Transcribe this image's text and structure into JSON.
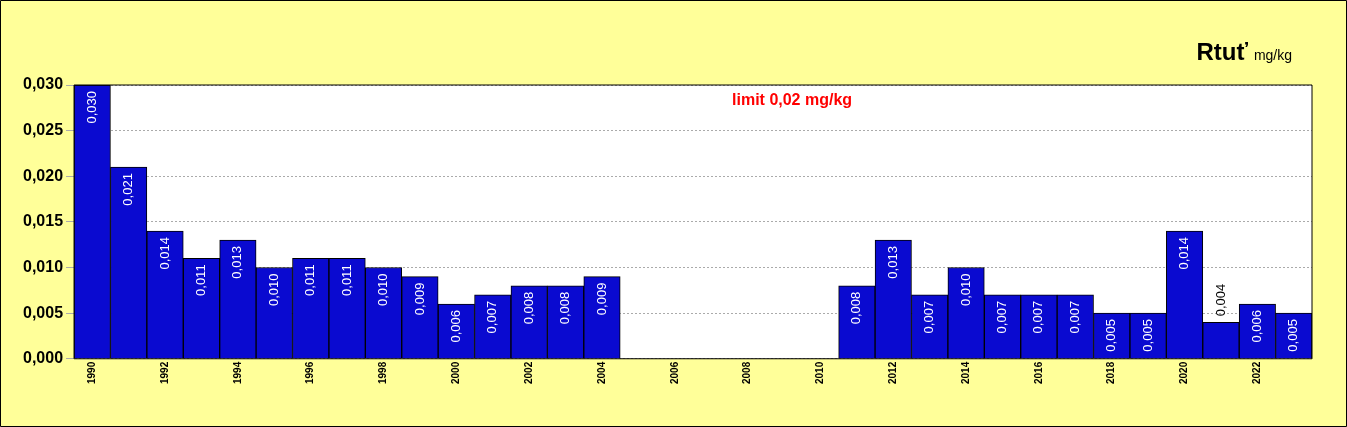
{
  "chart_data": {
    "type": "bar",
    "title": "Rtuť",
    "subtitle": "mg/kg",
    "annotations": [
      "limit 0,02 mg/kg"
    ],
    "categories": [
      "1990",
      null,
      "1992",
      null,
      "1994",
      null,
      "1996",
      null,
      "1998",
      null,
      "2000",
      null,
      "2002",
      null,
      "2004",
      null,
      "2006",
      null,
      "2008",
      null,
      "2010",
      null,
      "2012",
      null,
      "2014",
      null,
      "2016",
      null,
      "2018",
      null,
      "2020",
      null,
      "2022",
      null
    ],
    "values": [
      0.03,
      0.021,
      0.014,
      0.011,
      0.013,
      0.01,
      0.011,
      0.011,
      0.01,
      0.009,
      0.006,
      0.007,
      0.008,
      0.008,
      0.009,
      null,
      null,
      null,
      null,
      null,
      null,
      0.008,
      0.013,
      0.007,
      0.01,
      0.007,
      0.007,
      0.007,
      0.005,
      0.005,
      0.014,
      0.004,
      0.006,
      0.005
    ],
    "value_labels": [
      "0,030",
      "0,021",
      "0,014",
      "0,011",
      "0,013",
      "0,010",
      "0,011",
      "0,011",
      "0,010",
      "0,009",
      "0,006",
      "0,007",
      "0,008",
      "0,008",
      "0,009",
      null,
      null,
      null,
      null,
      null,
      null,
      "0,008",
      "0,013",
      "0,007",
      "0,010",
      "0,007",
      "0,007",
      "0,007",
      "0,005",
      "0,005",
      "0,014",
      "0,004",
      "0,006",
      "0,005"
    ],
    "color": "#0a0ad0",
    "ylim": [
      0,
      0.03
    ],
    "yticks": [
      {
        "value": 0,
        "label": "0,000"
      },
      {
        "value": 0.005,
        "label": "0,005"
      },
      {
        "value": 0.01,
        "label": "0,010"
      },
      {
        "value": 0.015,
        "label": "0,015"
      },
      {
        "value": 0.02,
        "label": "0,020"
      },
      {
        "value": 0.025,
        "label": "0,025"
      },
      {
        "value": 0.03,
        "label": "0,030"
      }
    ],
    "grid": "y"
  }
}
